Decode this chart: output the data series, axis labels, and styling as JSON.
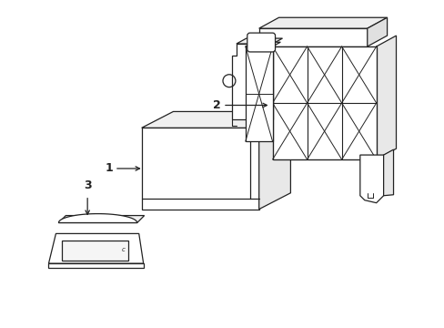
{
  "background_color": "#ffffff",
  "line_color": "#222222",
  "line_width": 0.9,
  "fig_width": 4.89,
  "fig_height": 3.6,
  "dpi": 100
}
